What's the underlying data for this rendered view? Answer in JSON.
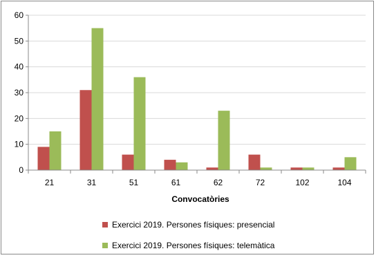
{
  "chart_data": {
    "type": "bar",
    "xlabel": "Convocatòries",
    "ylabel": "",
    "categories": [
      "21",
      "31",
      "51",
      "61",
      "62",
      "72",
      "102",
      "104"
    ],
    "ylim": [
      0,
      60
    ],
    "yticks": [
      0,
      10,
      20,
      30,
      40,
      50,
      60
    ],
    "grid": true,
    "legend_position": "bottom",
    "series": [
      {
        "name": "Exercici 2019. Persones físiques: presencial",
        "color": "#c0504d",
        "values": [
          9,
          31,
          6,
          4,
          1,
          6,
          1,
          1
        ]
      },
      {
        "name": "Exercici 2019. Persones físiques: telemàtica",
        "color": "#9bbb59",
        "values": [
          15,
          55,
          36,
          3,
          23,
          1,
          1,
          5
        ]
      }
    ]
  }
}
